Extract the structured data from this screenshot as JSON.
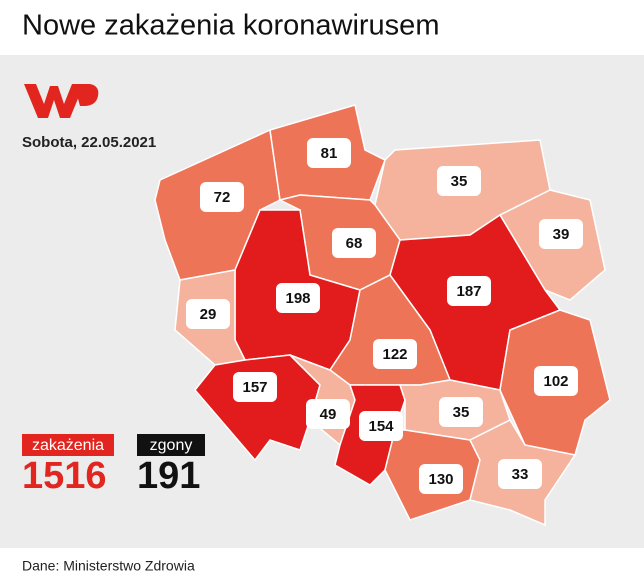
{
  "title": "Nowe zakażenia koronawirusem",
  "date": "Sobota, 22.05.2021",
  "regions": [
    {
      "value": 72,
      "color": "#ee7458"
    },
    {
      "value": 81,
      "color": "#ee7458"
    },
    {
      "value": 35,
      "color": "#f5b39d"
    },
    {
      "value": 39,
      "color": "#f5b39d"
    },
    {
      "value": 68,
      "color": "#ee7458"
    },
    {
      "value": 198,
      "color": "#e21c1c"
    },
    {
      "value": 187,
      "color": "#e21c1c"
    },
    {
      "value": 29,
      "color": "#f5b39d"
    },
    {
      "value": 122,
      "color": "#ee7458"
    },
    {
      "value": 102,
      "color": "#ee7458"
    },
    {
      "value": 157,
      "color": "#e21c1c"
    },
    {
      "value": 49,
      "color": "#f5b39d"
    },
    {
      "value": 154,
      "color": "#e21c1c"
    },
    {
      "value": 35,
      "color": "#f5b39d"
    },
    {
      "value": 130,
      "color": "#ee7458"
    },
    {
      "value": 33,
      "color": "#f5b39d"
    }
  ],
  "totals": {
    "infections_label": "zakażenia",
    "infections": 1516,
    "deaths_label": "zgony",
    "deaths": 191
  },
  "source": "Dane: Ministerstwo Zdrowia"
}
